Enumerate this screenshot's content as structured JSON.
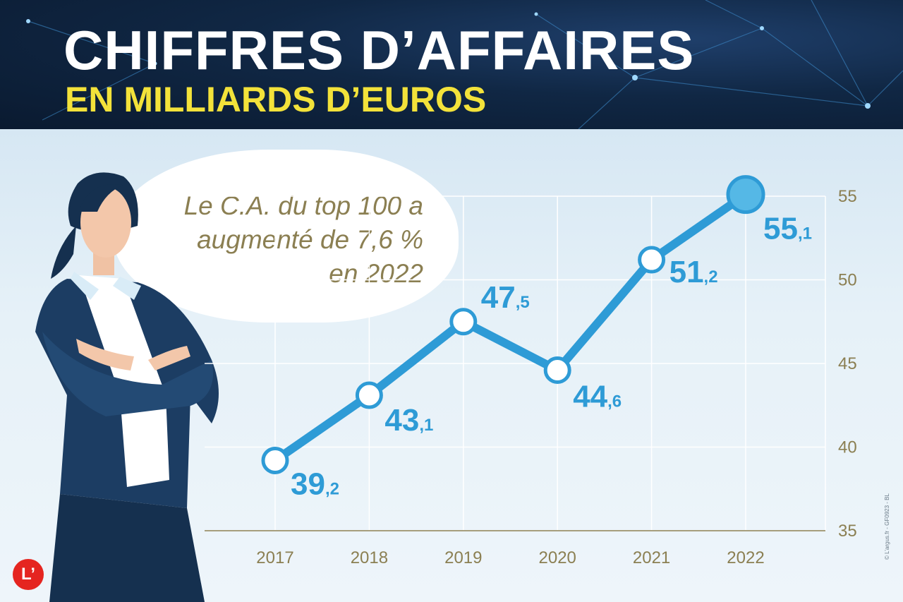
{
  "header": {
    "title": "CHIFFRES D’AFFAIRES",
    "subtitle": "EN MILLIARDS D’EUROS"
  },
  "bubble": {
    "lines": [
      "Le C.A. du top 100 a",
      "augmenté de 7,6 %",
      "en 2022"
    ]
  },
  "chart_data": {
    "type": "line",
    "x": [
      "2017",
      "2018",
      "2019",
      "2020",
      "2021",
      "2022"
    ],
    "series": [
      {
        "values": [
          39.2,
          43.1,
          47.5,
          44.6,
          51.2,
          55.1
        ],
        "labels": [
          {
            "int": "39",
            "dec": ",2"
          },
          {
            "int": "43",
            "dec": ",1"
          },
          {
            "int": "47",
            "dec": ",5"
          },
          {
            "int": "44",
            "dec": ",6"
          },
          {
            "int": "51",
            "dec": ",2"
          },
          {
            "int": "55",
            "dec": ",1"
          }
        ]
      }
    ],
    "ylim": [
      35,
      55
    ],
    "yticks": [
      "35",
      "40",
      "45",
      "50",
      "55"
    ],
    "y_axis_side": "right",
    "grid": true,
    "colors": {
      "line": "#2e9bd6",
      "label": "#2e9bd6",
      "tick": "#8b7f52",
      "grid": "#ffffff",
      "last_point": "#55b8e6"
    }
  },
  "logo": {
    "text": "L’"
  },
  "credit": "© L’argus.fr - GF0923 - BL"
}
